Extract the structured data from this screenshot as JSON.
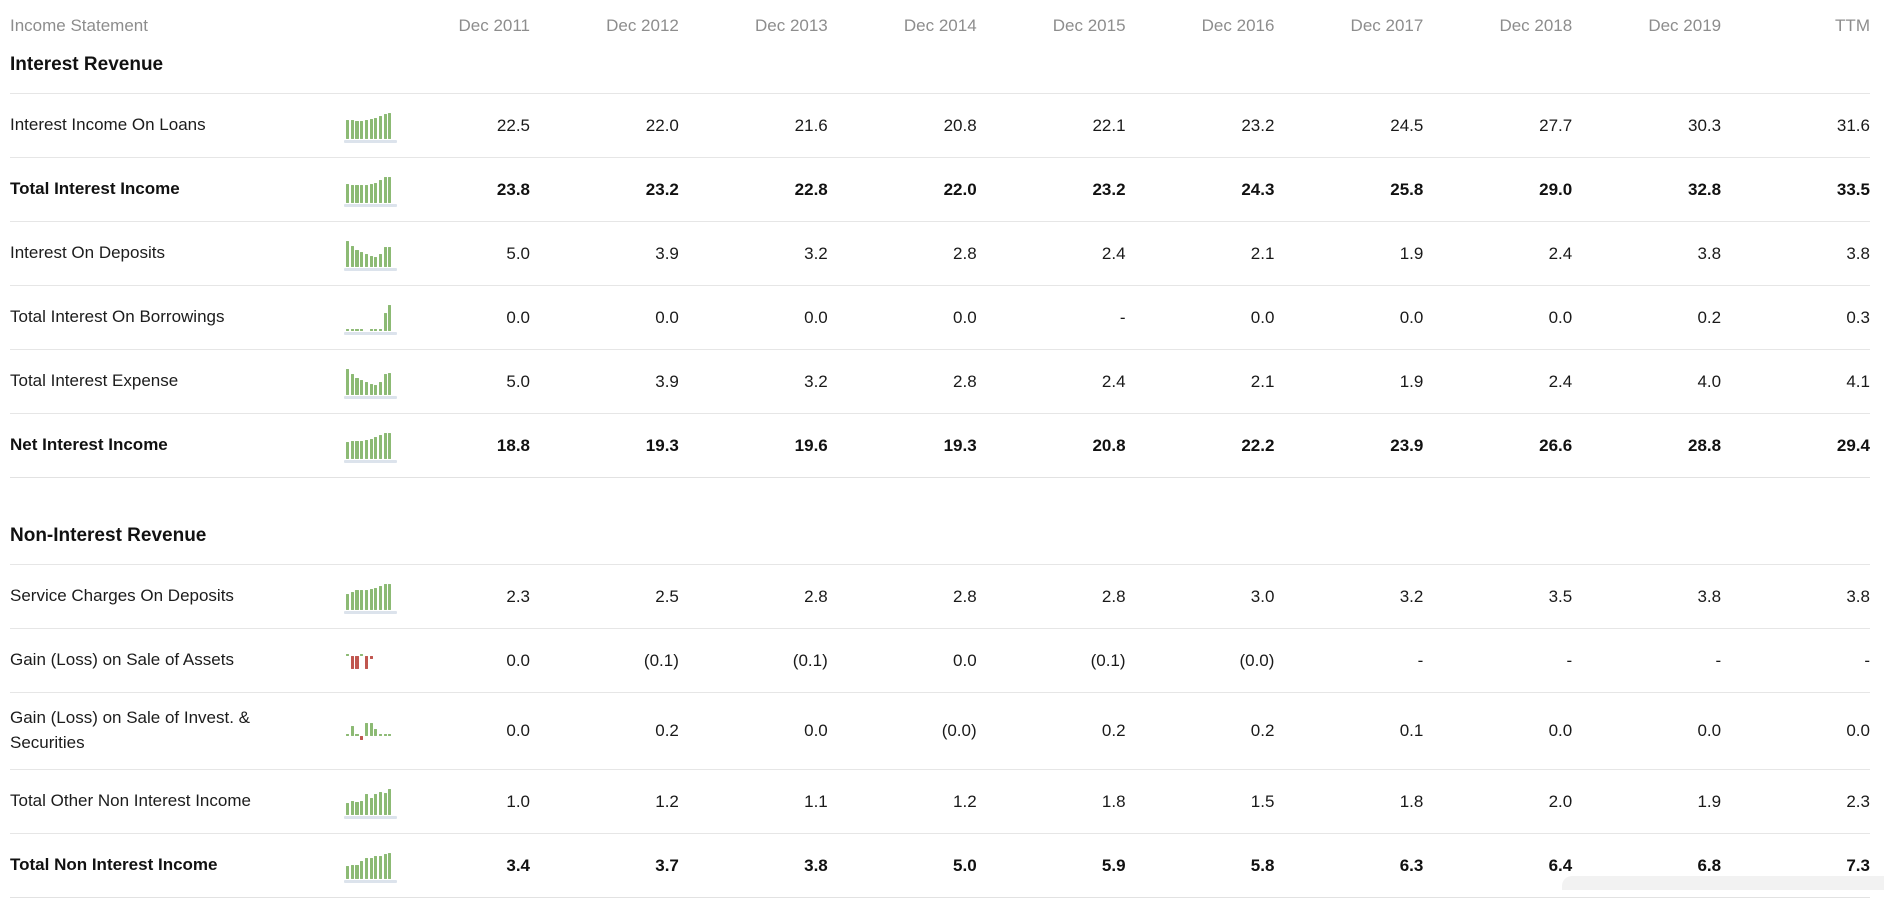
{
  "header": {
    "title": "Income Statement",
    "columns": [
      "Dec 2011",
      "Dec 2012",
      "Dec 2013",
      "Dec 2014",
      "Dec 2015",
      "Dec 2016",
      "Dec 2017",
      "Dec 2018",
      "Dec 2019",
      "TTM"
    ]
  },
  "sections": [
    {
      "title": "Interest Revenue",
      "rows": [
        {
          "label": "Interest Income On Loans",
          "bold": false,
          "values": [
            "22.5",
            "22.0",
            "21.6",
            "20.8",
            "22.1",
            "23.2",
            "24.5",
            "27.7",
            "30.3",
            "31.6"
          ],
          "spark": [
            22.5,
            22.0,
            21.6,
            20.8,
            22.1,
            23.2,
            24.5,
            27.7,
            30.3,
            31.6
          ]
        },
        {
          "label": "Total Interest Income",
          "bold": true,
          "values": [
            "23.8",
            "23.2",
            "22.8",
            "22.0",
            "23.2",
            "24.3",
            "25.8",
            "29.0",
            "32.8",
            "33.5"
          ],
          "spark": [
            23.8,
            23.2,
            22.8,
            22.0,
            23.2,
            24.3,
            25.8,
            29.0,
            32.8,
            33.5
          ]
        },
        {
          "label": "Interest On Deposits",
          "bold": false,
          "values": [
            "5.0",
            "3.9",
            "3.2",
            "2.8",
            "2.4",
            "2.1",
            "1.9",
            "2.4",
            "3.8",
            "3.8"
          ],
          "spark": [
            5.0,
            3.9,
            3.2,
            2.8,
            2.4,
            2.1,
            1.9,
            2.4,
            3.8,
            3.8
          ]
        },
        {
          "label": "Total Interest On Borrowings",
          "bold": false,
          "values": [
            "0.0",
            "0.0",
            "0.0",
            "0.0",
            "-",
            "0.0",
            "0.0",
            "0.0",
            "0.2",
            "0.3"
          ],
          "spark": [
            0,
            0,
            0,
            0,
            null,
            0,
            0,
            0,
            0.2,
            0.3
          ]
        },
        {
          "label": "Total Interest Expense",
          "bold": false,
          "values": [
            "5.0",
            "3.9",
            "3.2",
            "2.8",
            "2.4",
            "2.1",
            "1.9",
            "2.4",
            "4.0",
            "4.1"
          ],
          "spark": [
            5.0,
            3.9,
            3.2,
            2.8,
            2.4,
            2.1,
            1.9,
            2.4,
            4.0,
            4.1
          ]
        },
        {
          "label": "Net Interest Income",
          "bold": true,
          "values": [
            "18.8",
            "19.3",
            "19.6",
            "19.3",
            "20.8",
            "22.2",
            "23.9",
            "26.6",
            "28.8",
            "29.4"
          ],
          "spark": [
            18.8,
            19.3,
            19.6,
            19.3,
            20.8,
            22.2,
            23.9,
            26.6,
            28.8,
            29.4
          ]
        }
      ]
    },
    {
      "title": "Non-Interest Revenue",
      "rows": [
        {
          "label": "Service Charges On Deposits",
          "bold": false,
          "values": [
            "2.3",
            "2.5",
            "2.8",
            "2.8",
            "2.8",
            "3.0",
            "3.2",
            "3.5",
            "3.8",
            "3.8"
          ],
          "spark": [
            2.3,
            2.5,
            2.8,
            2.8,
            2.8,
            3.0,
            3.2,
            3.5,
            3.8,
            3.8
          ]
        },
        {
          "label": "Gain (Loss) on Sale of Assets",
          "bold": false,
          "values": [
            "0.0",
            "(0.1)",
            "(0.1)",
            "0.0",
            "(0.1)",
            "(0.0)",
            "-",
            "-",
            "-",
            "-"
          ],
          "spark": [
            0,
            -0.1,
            -0.1,
            0,
            -0.1,
            -0.02,
            null,
            null,
            null,
            null
          ]
        },
        {
          "label": "Gain (Loss) on Sale of Invest. & Securities",
          "bold": false,
          "values": [
            "0.0",
            "0.2",
            "0.0",
            "(0.0)",
            "0.2",
            "0.2",
            "0.1",
            "0.0",
            "0.0",
            "0.0"
          ],
          "spark": [
            0,
            0.15,
            0,
            -0.04,
            0.2,
            0.2,
            0.1,
            0,
            0,
            0
          ]
        },
        {
          "label": "Total Other Non Interest Income",
          "bold": false,
          "values": [
            "1.0",
            "1.2",
            "1.1",
            "1.2",
            "1.8",
            "1.5",
            "1.8",
            "2.0",
            "1.9",
            "2.3"
          ],
          "spark": [
            1.0,
            1.2,
            1.1,
            1.2,
            1.8,
            1.5,
            1.8,
            2.0,
            1.9,
            2.3
          ]
        },
        {
          "label": "Total Non Interest Income",
          "bold": true,
          "values": [
            "3.4",
            "3.7",
            "3.8",
            "5.0",
            "5.9",
            "5.8",
            "6.3",
            "6.4",
            "6.8",
            "7.3"
          ],
          "spark": [
            3.4,
            3.7,
            3.8,
            5.0,
            5.9,
            5.8,
            6.3,
            6.4,
            6.8,
            7.3
          ]
        }
      ]
    }
  ],
  "colors": {
    "positive_bar": "#8CBA74",
    "negative_bar": "#C0564F",
    "baseline": "#DCE3EC",
    "header_text": "#8D8D8D"
  }
}
